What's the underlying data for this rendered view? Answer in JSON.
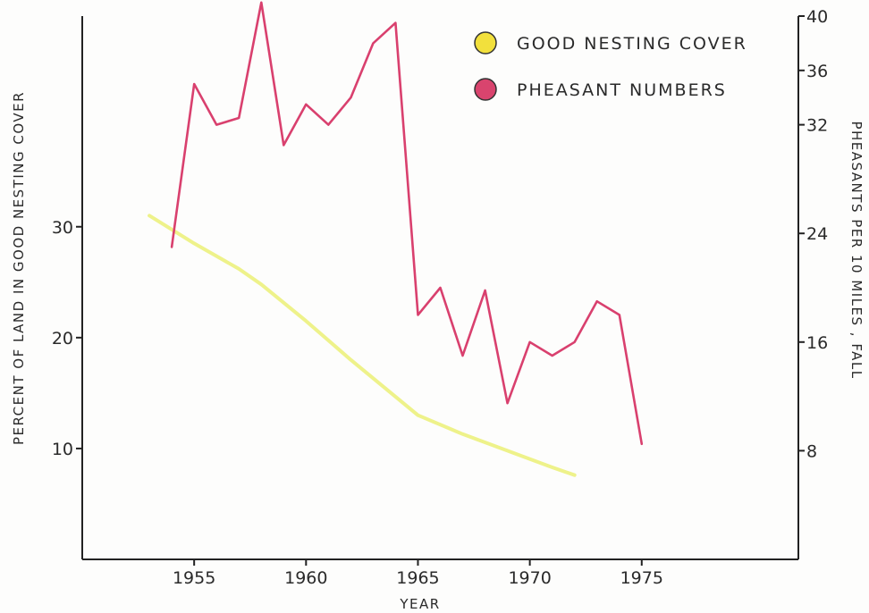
{
  "chart_data": {
    "type": "line",
    "xlabel": "YEAR",
    "ylabel_left": "PERCENT OF LAND IN GOOD NESTING COVER",
    "ylabel_right": "PHEASANTS PER 10 MILES , FALL",
    "x_ticks": [
      1955,
      1960,
      1965,
      1970,
      1975
    ],
    "xlim": [
      1950,
      1982
    ],
    "y_left_ticks": [
      10,
      20,
      30
    ],
    "y_left_lim": [
      0,
      49
    ],
    "y_right_ticks": [
      8,
      16,
      24,
      32,
      36,
      40
    ],
    "y_right_lim": [
      0,
      40
    ],
    "legend_position": "top-right",
    "grid": false,
    "series": [
      {
        "name": "GOOD NESTING COVER",
        "axis": "left",
        "color": "#eef28a",
        "marker_color": "#f2e03c",
        "x": [
          1953,
          1955,
          1957,
          1958,
          1960,
          1962,
          1965,
          1967,
          1969,
          1971,
          1972
        ],
        "y": [
          31,
          28.5,
          26.2,
          24.8,
          21.5,
          18,
          13,
          11.3,
          9.8,
          8.3,
          7.6
        ]
      },
      {
        "name": "PHEASANT NUMBERS",
        "axis": "right",
        "color": "#d9406e",
        "marker_color": "#d9446e",
        "x": [
          1954,
          1955,
          1956,
          1957,
          1958,
          1959,
          1960,
          1961,
          1962,
          1963,
          1964,
          1965,
          1966,
          1967,
          1968,
          1969,
          1970,
          1971,
          1972,
          1973,
          1974,
          1975
        ],
        "y": [
          23,
          35,
          32,
          32.5,
          41,
          30.5,
          33.5,
          32,
          34,
          38,
          39.5,
          18,
          20,
          15,
          19.8,
          11.5,
          16,
          15,
          16,
          19,
          18,
          8.5
        ]
      }
    ]
  }
}
